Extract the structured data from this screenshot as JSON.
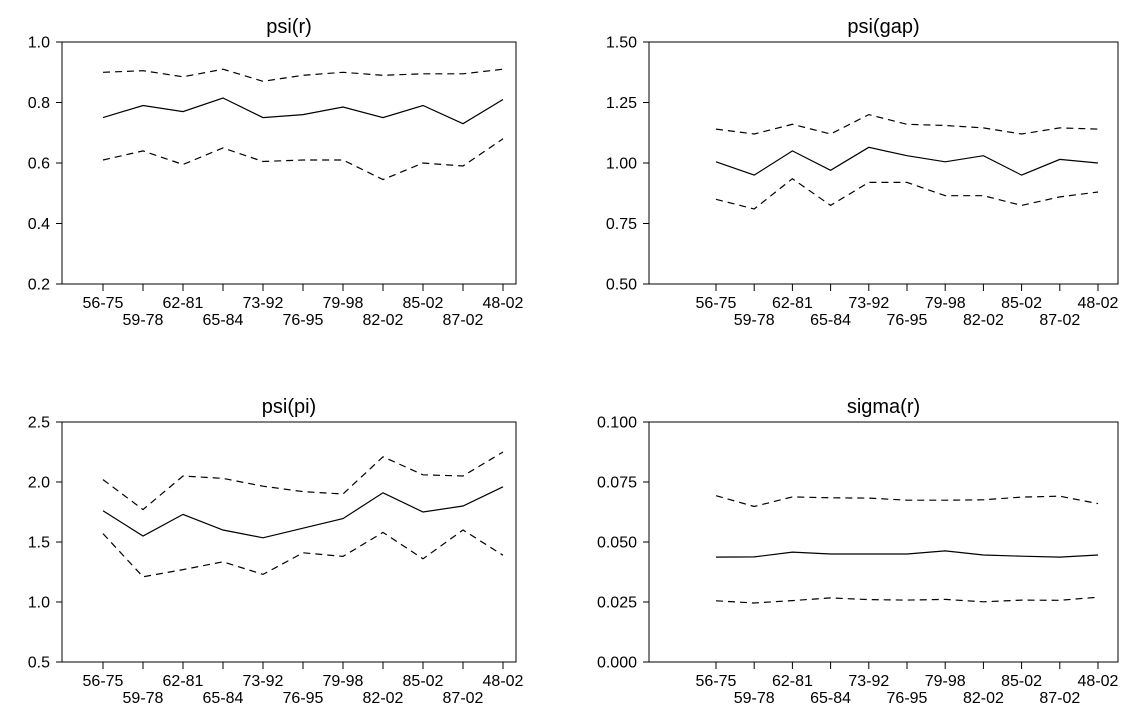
{
  "chart_data": [
    {
      "type": "line",
      "title": "psi(r)",
      "categories": [
        "56-75",
        "59-78",
        "62-81",
        "65-84",
        "73-92",
        "76-95",
        "79-98",
        "82-02",
        "85-02",
        "87-02",
        "48-02"
      ],
      "ylim": [
        0.2,
        1.0
      ],
      "yticks": [
        "0.2",
        "0.4",
        "0.6",
        "0.8",
        "1.0"
      ],
      "series": [
        {
          "values": [
            0.75,
            0.79,
            0.77,
            0.815,
            0.75,
            0.76,
            0.785,
            0.75,
            0.79,
            0.73,
            0.81
          ],
          "style": "solid"
        },
        {
          "values": [
            0.9,
            0.905,
            0.885,
            0.91,
            0.87,
            0.89,
            0.9,
            0.89,
            0.895,
            0.895,
            0.91
          ],
          "style": "dashed"
        },
        {
          "values": [
            0.61,
            0.64,
            0.595,
            0.65,
            0.605,
            0.61,
            0.61,
            0.545,
            0.6,
            0.59,
            0.68
          ],
          "style": "dashed"
        }
      ],
      "grid": false
    },
    {
      "type": "line",
      "title": "psi(gap)",
      "categories": [
        "56-75",
        "59-78",
        "62-81",
        "65-84",
        "73-92",
        "76-95",
        "79-98",
        "82-02",
        "85-02",
        "87-02",
        "48-02"
      ],
      "ylim": [
        0.5,
        1.5
      ],
      "yticks": [
        "0.50",
        "0.75",
        "1.00",
        "1.25",
        "1.50"
      ],
      "series": [
        {
          "values": [
            1.005,
            0.95,
            1.05,
            0.97,
            1.065,
            1.03,
            1.005,
            1.03,
            0.95,
            1.015,
            1.0
          ],
          "style": "solid"
        },
        {
          "values": [
            1.14,
            1.12,
            1.16,
            1.12,
            1.2,
            1.16,
            1.155,
            1.145,
            1.12,
            1.145,
            1.14
          ],
          "style": "dashed"
        },
        {
          "values": [
            0.85,
            0.81,
            0.935,
            0.825,
            0.92,
            0.92,
            0.865,
            0.865,
            0.825,
            0.86,
            0.88
          ],
          "style": "dashed"
        }
      ],
      "grid": false
    },
    {
      "type": "line",
      "title": "psi(pi)",
      "categories": [
        "56-75",
        "59-78",
        "62-81",
        "65-84",
        "73-92",
        "76-95",
        "79-98",
        "82-02",
        "85-02",
        "87-02",
        "48-02"
      ],
      "ylim": [
        0.5,
        2.5
      ],
      "yticks": [
        "0.5",
        "1.0",
        "1.5",
        "2.0",
        "2.5"
      ],
      "series": [
        {
          "values": [
            1.76,
            1.55,
            1.73,
            1.6,
            1.535,
            1.615,
            1.695,
            1.91,
            1.75,
            1.8,
            1.96
          ],
          "style": "solid"
        },
        {
          "values": [
            2.02,
            1.77,
            2.05,
            2.03,
            1.965,
            1.92,
            1.9,
            2.21,
            2.06,
            2.05,
            2.25
          ],
          "style": "dashed"
        },
        {
          "values": [
            1.57,
            1.21,
            1.27,
            1.335,
            1.23,
            1.41,
            1.38,
            1.58,
            1.36,
            1.6,
            1.39
          ],
          "style": "dashed"
        }
      ],
      "grid": false
    },
    {
      "type": "line",
      "title": "sigma(r)",
      "categories": [
        "56-75",
        "59-78",
        "62-81",
        "65-84",
        "73-92",
        "76-95",
        "79-98",
        "82-02",
        "85-02",
        "87-02",
        "48-02"
      ],
      "ylim": [
        0.0,
        0.1
      ],
      "yticks": [
        "0.000",
        "0.025",
        "0.050",
        "0.075",
        "0.100"
      ],
      "series": [
        {
          "values": [
            0.0437,
            0.0438,
            0.0458,
            0.045,
            0.045,
            0.045,
            0.0463,
            0.0446,
            0.0441,
            0.0437,
            0.0446
          ],
          "style": "solid"
        },
        {
          "values": [
            0.0693,
            0.0648,
            0.0688,
            0.0684,
            0.0683,
            0.0674,
            0.0674,
            0.0676,
            0.0687,
            0.0691,
            0.066
          ],
          "style": "dashed"
        },
        {
          "values": [
            0.0255,
            0.0246,
            0.0256,
            0.0267,
            0.026,
            0.0258,
            0.0261,
            0.0251,
            0.0258,
            0.0257,
            0.027
          ],
          "style": "dashed"
        }
      ],
      "grid": false
    }
  ]
}
